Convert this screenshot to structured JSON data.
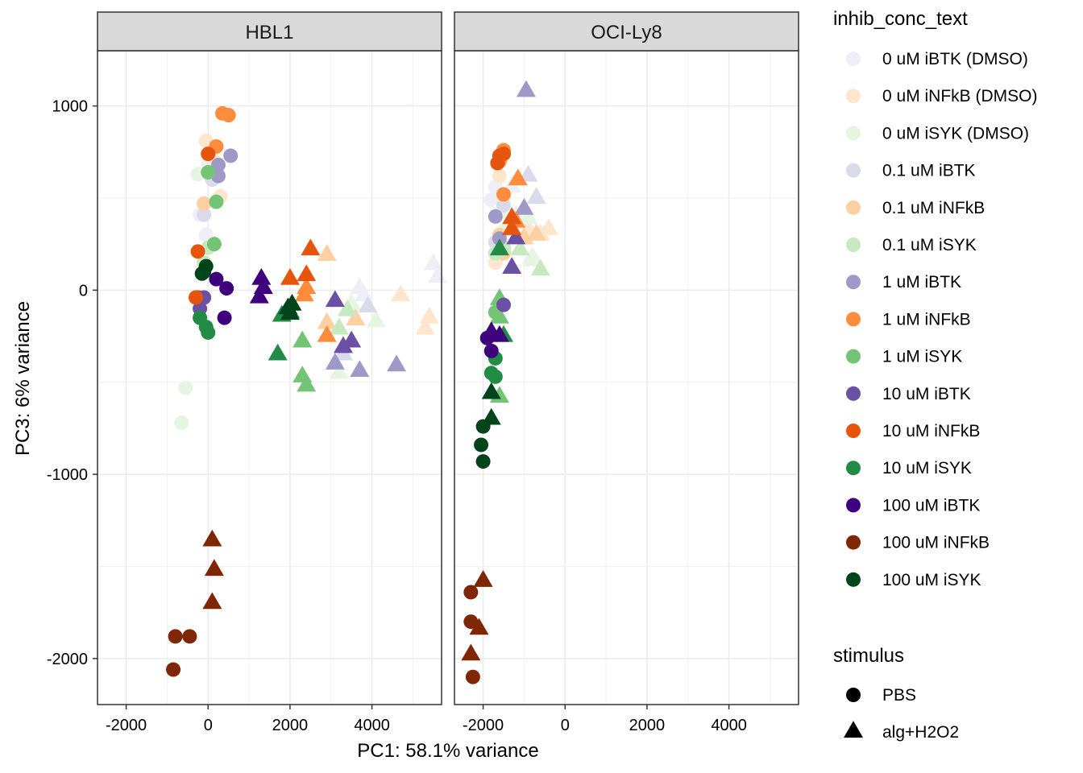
{
  "chart_data": {
    "type": "scatter",
    "xlabel": "PC1: 58.1% variance",
    "ylabel": "PC3: 6% variance",
    "xlim": [
      -2700,
      5700
    ],
    "ylim": [
      -2250,
      1300
    ],
    "x_ticks": [
      -2000,
      0,
      2000,
      4000
    ],
    "x_tick_labels": [
      "-2000",
      "0",
      "2000",
      "4000"
    ],
    "y_ticks": [
      -2000,
      -1000,
      0,
      1000
    ],
    "y_tick_labels": [
      "-2000",
      "-1000",
      "0",
      "1000"
    ],
    "grid": true,
    "legend_position": "right",
    "panels": [
      "HBL1",
      "OCI-Ly8"
    ],
    "color_legend": {
      "title": "inhib_conc_text",
      "items": [
        {
          "label": "0 uM iBTK (DMSO)",
          "color": "#EFEDF5"
        },
        {
          "label": "0 uM iNFkB (DMSO)",
          "color": "#FEE6CE"
        },
        {
          "label": "0 uM iSYK (DMSO)",
          "color": "#E5F5E0"
        },
        {
          "label": "0.1 uM iBTK",
          "color": "#DADAEB"
        },
        {
          "label": "0.1 uM iNFkB",
          "color": "#FDD0A2"
        },
        {
          "label": "0.1 uM iSYK",
          "color": "#C7E9C0"
        },
        {
          "label": "1 uM iBTK",
          "color": "#9E9AC8"
        },
        {
          "label": "1 uM iNFkB",
          "color": "#FD8D3C"
        },
        {
          "label": "1 uM iSYK",
          "color": "#74C476"
        },
        {
          "label": "10 uM iBTK",
          "color": "#6A51A3"
        },
        {
          "label": "10 uM iNFkB",
          "color": "#E6550D"
        },
        {
          "label": "10 uM iSYK",
          "color": "#238B45"
        },
        {
          "label": "100 uM iBTK",
          "color": "#3F007D"
        },
        {
          "label": "100 uM iNFkB",
          "color": "#7F2704"
        },
        {
          "label": "100 uM iSYK",
          "color": "#00441B"
        }
      ]
    },
    "shape_legend": {
      "title": "stimulus",
      "items": [
        {
          "label": "PBS",
          "shape": "circle"
        },
        {
          "label": "alg+H2O2",
          "shape": "triangle"
        }
      ]
    },
    "points": [
      {
        "panel": 0,
        "x": -200,
        "y": 410,
        "group": 0,
        "shape": 0
      },
      {
        "panel": 0,
        "x": -50,
        "y": 300,
        "group": 0,
        "shape": 0
      },
      {
        "panel": 0,
        "x": 0,
        "y": 680,
        "group": 0,
        "shape": 0
      },
      {
        "panel": 0,
        "x": 3700,
        "y": 10,
        "group": 0,
        "shape": 1
      },
      {
        "panel": 0,
        "x": 3800,
        "y": -30,
        "group": 0,
        "shape": 1
      },
      {
        "panel": 0,
        "x": 5500,
        "y": 140,
        "group": 0,
        "shape": 1
      },
      {
        "panel": 0,
        "x": 5600,
        "y": 70,
        "group": 0,
        "shape": 1
      },
      {
        "panel": 0,
        "x": -50,
        "y": 810,
        "group": 1,
        "shape": 0
      },
      {
        "panel": 0,
        "x": 150,
        "y": 700,
        "group": 1,
        "shape": 0
      },
      {
        "panel": 0,
        "x": 300,
        "y": 510,
        "group": 1,
        "shape": 0
      },
      {
        "panel": 0,
        "x": 4700,
        "y": -30,
        "group": 1,
        "shape": 1
      },
      {
        "panel": 0,
        "x": 5400,
        "y": -150,
        "group": 1,
        "shape": 1
      },
      {
        "panel": 0,
        "x": 5300,
        "y": -210,
        "group": 1,
        "shape": 1
      },
      {
        "panel": 0,
        "x": -250,
        "y": 630,
        "group": 2,
        "shape": 0
      },
      {
        "panel": 0,
        "x": -550,
        "y": -530,
        "group": 2,
        "shape": 0
      },
      {
        "panel": 0,
        "x": -650,
        "y": -720,
        "group": 2,
        "shape": 0
      },
      {
        "panel": 0,
        "x": 3500,
        "y": -80,
        "group": 2,
        "shape": 1
      },
      {
        "panel": 0,
        "x": 4100,
        "y": -170,
        "group": 2,
        "shape": 1
      },
      {
        "panel": 0,
        "x": 3200,
        "y": -450,
        "group": 2,
        "shape": 1
      },
      {
        "panel": 0,
        "x": -100,
        "y": 410,
        "group": 3,
        "shape": 0
      },
      {
        "panel": 0,
        "x": 100,
        "y": 600,
        "group": 3,
        "shape": 0
      },
      {
        "panel": 0,
        "x": 3300,
        "y": -350,
        "group": 3,
        "shape": 1
      },
      {
        "panel": 0,
        "x": 3900,
        "y": -90,
        "group": 3,
        "shape": 1
      },
      {
        "panel": 0,
        "x": -100,
        "y": 470,
        "group": 4,
        "shape": 0
      },
      {
        "panel": 0,
        "x": 200,
        "y": 650,
        "group": 4,
        "shape": 0
      },
      {
        "panel": 0,
        "x": 2900,
        "y": 190,
        "group": 4,
        "shape": 1
      },
      {
        "panel": 0,
        "x": 2900,
        "y": -180,
        "group": 4,
        "shape": 1
      },
      {
        "panel": 0,
        "x": 3600,
        "y": -160,
        "group": 4,
        "shape": 1
      },
      {
        "panel": 0,
        "x": -100,
        "y": 150,
        "group": 5,
        "shape": 0
      },
      {
        "panel": 0,
        "x": 0,
        "y": 230,
        "group": 5,
        "shape": 0
      },
      {
        "panel": 0,
        "x": 3400,
        "y": -110,
        "group": 5,
        "shape": 1
      },
      {
        "panel": 0,
        "x": 3200,
        "y": -210,
        "group": 5,
        "shape": 1
      },
      {
        "panel": 0,
        "x": 250,
        "y": 680,
        "group": 6,
        "shape": 0
      },
      {
        "panel": 0,
        "x": 550,
        "y": 730,
        "group": 6,
        "shape": 0
      },
      {
        "panel": 0,
        "x": 250,
        "y": 620,
        "group": 6,
        "shape": 0
      },
      {
        "panel": 0,
        "x": 3100,
        "y": -400,
        "group": 6,
        "shape": 1
      },
      {
        "panel": 0,
        "x": 3700,
        "y": -440,
        "group": 6,
        "shape": 1
      },
      {
        "panel": 0,
        "x": 4600,
        "y": -410,
        "group": 6,
        "shape": 1
      },
      {
        "panel": 0,
        "x": 350,
        "y": 960,
        "group": 7,
        "shape": 0
      },
      {
        "panel": 0,
        "x": 500,
        "y": 950,
        "group": 7,
        "shape": 0
      },
      {
        "panel": 0,
        "x": 200,
        "y": 780,
        "group": 7,
        "shape": 0
      },
      {
        "panel": 0,
        "x": 2400,
        "y": 10,
        "group": 7,
        "shape": 1
      },
      {
        "panel": 0,
        "x": 2900,
        "y": -250,
        "group": 7,
        "shape": 1
      },
      {
        "panel": 0,
        "x": 2350,
        "y": -30,
        "group": 7,
        "shape": 1
      },
      {
        "panel": 0,
        "x": 0,
        "y": 640,
        "group": 8,
        "shape": 0
      },
      {
        "panel": 0,
        "x": 200,
        "y": 480,
        "group": 8,
        "shape": 0
      },
      {
        "panel": 0,
        "x": 150,
        "y": 250,
        "group": 8,
        "shape": 0
      },
      {
        "panel": 0,
        "x": 2300,
        "y": -280,
        "group": 8,
        "shape": 1
      },
      {
        "panel": 0,
        "x": 2300,
        "y": -470,
        "group": 8,
        "shape": 1
      },
      {
        "panel": 0,
        "x": 2400,
        "y": -520,
        "group": 8,
        "shape": 1
      },
      {
        "panel": 0,
        "x": -250,
        "y": -40,
        "group": 9,
        "shape": 0
      },
      {
        "panel": 0,
        "x": -100,
        "y": -40,
        "group": 9,
        "shape": 0
      },
      {
        "panel": 0,
        "x": -200,
        "y": -100,
        "group": 9,
        "shape": 0
      },
      {
        "panel": 0,
        "x": 3100,
        "y": -60,
        "group": 9,
        "shape": 1
      },
      {
        "panel": 0,
        "x": 3300,
        "y": -310,
        "group": 9,
        "shape": 1
      },
      {
        "panel": 0,
        "x": 3500,
        "y": -280,
        "group": 9,
        "shape": 1
      },
      {
        "panel": 0,
        "x": 0,
        "y": 740,
        "group": 10,
        "shape": 0
      },
      {
        "panel": 0,
        "x": -250,
        "y": 210,
        "group": 10,
        "shape": 0
      },
      {
        "panel": 0,
        "x": -300,
        "y": -40,
        "group": 10,
        "shape": 0
      },
      {
        "panel": 0,
        "x": 2500,
        "y": 220,
        "group": 10,
        "shape": 1
      },
      {
        "panel": 0,
        "x": 2000,
        "y": 60,
        "group": 10,
        "shape": 1
      },
      {
        "panel": 0,
        "x": 2400,
        "y": 80,
        "group": 10,
        "shape": 1
      },
      {
        "panel": 0,
        "x": -200,
        "y": -150,
        "group": 11,
        "shape": 0
      },
      {
        "panel": 0,
        "x": -50,
        "y": -200,
        "group": 11,
        "shape": 0
      },
      {
        "panel": 0,
        "x": 0,
        "y": -230,
        "group": 11,
        "shape": 0
      },
      {
        "panel": 0,
        "x": 2000,
        "y": -120,
        "group": 11,
        "shape": 1
      },
      {
        "panel": 0,
        "x": 1800,
        "y": -140,
        "group": 11,
        "shape": 1
      },
      {
        "panel": 0,
        "x": 1700,
        "y": -350,
        "group": 11,
        "shape": 1
      },
      {
        "panel": 0,
        "x": 200,
        "y": 60,
        "group": 12,
        "shape": 0
      },
      {
        "panel": 0,
        "x": 450,
        "y": 10,
        "group": 12,
        "shape": 0
      },
      {
        "panel": 0,
        "x": 400,
        "y": -150,
        "group": 12,
        "shape": 0
      },
      {
        "panel": 0,
        "x": 1300,
        "y": 60,
        "group": 12,
        "shape": 1
      },
      {
        "panel": 0,
        "x": 1350,
        "y": 10,
        "group": 12,
        "shape": 1
      },
      {
        "panel": 0,
        "x": 1250,
        "y": -40,
        "group": 12,
        "shape": 1
      },
      {
        "panel": 0,
        "x": -800,
        "y": -1880,
        "group": 13,
        "shape": 0
      },
      {
        "panel": 0,
        "x": -450,
        "y": -1880,
        "group": 13,
        "shape": 0
      },
      {
        "panel": 0,
        "x": -850,
        "y": -2060,
        "group": 13,
        "shape": 0
      },
      {
        "panel": 0,
        "x": 100,
        "y": -1360,
        "group": 13,
        "shape": 1
      },
      {
        "panel": 0,
        "x": 150,
        "y": -1520,
        "group": 13,
        "shape": 1
      },
      {
        "panel": 0,
        "x": 100,
        "y": -1700,
        "group": 13,
        "shape": 1
      },
      {
        "panel": 0,
        "x": -100,
        "y": 100,
        "group": 14,
        "shape": 0
      },
      {
        "panel": 0,
        "x": -50,
        "y": 130,
        "group": 14,
        "shape": 0
      },
      {
        "panel": 0,
        "x": -150,
        "y": 90,
        "group": 14,
        "shape": 0
      },
      {
        "panel": 0,
        "x": 1950,
        "y": -100,
        "group": 14,
        "shape": 1
      },
      {
        "panel": 0,
        "x": 2050,
        "y": -80,
        "group": 14,
        "shape": 1
      },
      {
        "panel": 0,
        "x": 2000,
        "y": -130,
        "group": 14,
        "shape": 1
      },
      {
        "panel": 1,
        "x": -1800,
        "y": 490,
        "group": 0,
        "shape": 0
      },
      {
        "panel": 1,
        "x": -1700,
        "y": 560,
        "group": 0,
        "shape": 0
      },
      {
        "panel": 1,
        "x": -1300,
        "y": 560,
        "group": 0,
        "shape": 1
      },
      {
        "panel": 1,
        "x": -1200,
        "y": 400,
        "group": 0,
        "shape": 1
      },
      {
        "panel": 1,
        "x": -800,
        "y": 180,
        "group": 0,
        "shape": 1
      },
      {
        "panel": 1,
        "x": -1700,
        "y": 150,
        "group": 1,
        "shape": 0
      },
      {
        "panel": 1,
        "x": -1600,
        "y": 620,
        "group": 1,
        "shape": 0
      },
      {
        "panel": 1,
        "x": -900,
        "y": 330,
        "group": 1,
        "shape": 1
      },
      {
        "panel": 1,
        "x": -600,
        "y": 300,
        "group": 1,
        "shape": 1
      },
      {
        "panel": 1,
        "x": -400,
        "y": 330,
        "group": 1,
        "shape": 1
      },
      {
        "panel": 1,
        "x": -1600,
        "y": 420,
        "group": 2,
        "shape": 0
      },
      {
        "panel": 1,
        "x": -1500,
        "y": 320,
        "group": 2,
        "shape": 0
      },
      {
        "panel": 1,
        "x": -900,
        "y": 390,
        "group": 2,
        "shape": 1
      },
      {
        "panel": 1,
        "x": -800,
        "y": 160,
        "group": 2,
        "shape": 1
      },
      {
        "panel": 1,
        "x": -1700,
        "y": 260,
        "group": 3,
        "shape": 0
      },
      {
        "panel": 1,
        "x": -1500,
        "y": 460,
        "group": 3,
        "shape": 0
      },
      {
        "panel": 1,
        "x": -900,
        "y": 620,
        "group": 3,
        "shape": 1
      },
      {
        "panel": 1,
        "x": -700,
        "y": 500,
        "group": 3,
        "shape": 1
      },
      {
        "panel": 1,
        "x": -1600,
        "y": 300,
        "group": 4,
        "shape": 0
      },
      {
        "panel": 1,
        "x": -1500,
        "y": 200,
        "group": 4,
        "shape": 0
      },
      {
        "panel": 1,
        "x": -1000,
        "y": 280,
        "group": 4,
        "shape": 1
      },
      {
        "panel": 1,
        "x": -700,
        "y": 300,
        "group": 4,
        "shape": 1
      },
      {
        "panel": 1,
        "x": -1700,
        "y": 200,
        "group": 5,
        "shape": 0
      },
      {
        "panel": 1,
        "x": -1500,
        "y": 230,
        "group": 5,
        "shape": 0
      },
      {
        "panel": 1,
        "x": -1100,
        "y": 220,
        "group": 5,
        "shape": 1
      },
      {
        "panel": 1,
        "x": -600,
        "y": 110,
        "group": 5,
        "shape": 1
      },
      {
        "panel": 1,
        "x": -1700,
        "y": 400,
        "group": 6,
        "shape": 0
      },
      {
        "panel": 1,
        "x": -1600,
        "y": 280,
        "group": 6,
        "shape": 0
      },
      {
        "panel": 1,
        "x": -950,
        "y": 1080,
        "group": 6,
        "shape": 1
      },
      {
        "panel": 1,
        "x": -1000,
        "y": 440,
        "group": 6,
        "shape": 1
      },
      {
        "panel": 1,
        "x": -1500,
        "y": 760,
        "group": 7,
        "shape": 0
      },
      {
        "panel": 1,
        "x": -1600,
        "y": 700,
        "group": 7,
        "shape": 0
      },
      {
        "panel": 1,
        "x": -1500,
        "y": 520,
        "group": 7,
        "shape": 0
      },
      {
        "panel": 1,
        "x": -1150,
        "y": 600,
        "group": 7,
        "shape": 1
      },
      {
        "panel": 1,
        "x": -1200,
        "y": 370,
        "group": 7,
        "shape": 1
      },
      {
        "panel": 1,
        "x": -1700,
        "y": -120,
        "group": 8,
        "shape": 0
      },
      {
        "panel": 1,
        "x": -1600,
        "y": -50,
        "group": 8,
        "shape": 1
      },
      {
        "panel": 1,
        "x": -1600,
        "y": -150,
        "group": 8,
        "shape": 1
      },
      {
        "panel": 1,
        "x": -1600,
        "y": -580,
        "group": 8,
        "shape": 1
      },
      {
        "panel": 1,
        "x": -1500,
        "y": -80,
        "group": 9,
        "shape": 0
      },
      {
        "panel": 1,
        "x": -1300,
        "y": 120,
        "group": 9,
        "shape": 1
      },
      {
        "panel": 1,
        "x": -1200,
        "y": 280,
        "group": 9,
        "shape": 1
      },
      {
        "panel": 1,
        "x": -1600,
        "y": 730,
        "group": 10,
        "shape": 0
      },
      {
        "panel": 1,
        "x": -1500,
        "y": 740,
        "group": 10,
        "shape": 0
      },
      {
        "panel": 1,
        "x": -1650,
        "y": 690,
        "group": 10,
        "shape": 0
      },
      {
        "panel": 1,
        "x": -1300,
        "y": 330,
        "group": 10,
        "shape": 1
      },
      {
        "panel": 1,
        "x": -1300,
        "y": 390,
        "group": 10,
        "shape": 1
      },
      {
        "panel": 1,
        "x": -1700,
        "y": -370,
        "group": 11,
        "shape": 0
      },
      {
        "panel": 1,
        "x": -1800,
        "y": -450,
        "group": 11,
        "shape": 0
      },
      {
        "panel": 1,
        "x": -1700,
        "y": -470,
        "group": 11,
        "shape": 0
      },
      {
        "panel": 1,
        "x": -1600,
        "y": 220,
        "group": 11,
        "shape": 1
      },
      {
        "panel": 1,
        "x": -1500,
        "y": -250,
        "group": 11,
        "shape": 1
      },
      {
        "panel": 1,
        "x": -1900,
        "y": -260,
        "group": 12,
        "shape": 0
      },
      {
        "panel": 1,
        "x": -1800,
        "y": -330,
        "group": 12,
        "shape": 0
      },
      {
        "panel": 1,
        "x": -1800,
        "y": -230,
        "group": 12,
        "shape": 1
      },
      {
        "panel": 1,
        "x": -1600,
        "y": -250,
        "group": 12,
        "shape": 1
      },
      {
        "panel": 1,
        "x": -2300,
        "y": -1640,
        "group": 13,
        "shape": 0
      },
      {
        "panel": 1,
        "x": -2300,
        "y": -1800,
        "group": 13,
        "shape": 0
      },
      {
        "panel": 1,
        "x": -2250,
        "y": -2100,
        "group": 13,
        "shape": 0
      },
      {
        "panel": 1,
        "x": -2000,
        "y": -1580,
        "group": 13,
        "shape": 1
      },
      {
        "panel": 1,
        "x": -2100,
        "y": -1840,
        "group": 13,
        "shape": 1
      },
      {
        "panel": 1,
        "x": -2300,
        "y": -1980,
        "group": 13,
        "shape": 1
      },
      {
        "panel": 1,
        "x": -2000,
        "y": -740,
        "group": 14,
        "shape": 0
      },
      {
        "panel": 1,
        "x": -2050,
        "y": -840,
        "group": 14,
        "shape": 0
      },
      {
        "panel": 1,
        "x": -2000,
        "y": -930,
        "group": 14,
        "shape": 0
      },
      {
        "panel": 1,
        "x": -1800,
        "y": -560,
        "group": 14,
        "shape": 1
      },
      {
        "panel": 1,
        "x": -1800,
        "y": -700,
        "group": 14,
        "shape": 1
      }
    ]
  }
}
